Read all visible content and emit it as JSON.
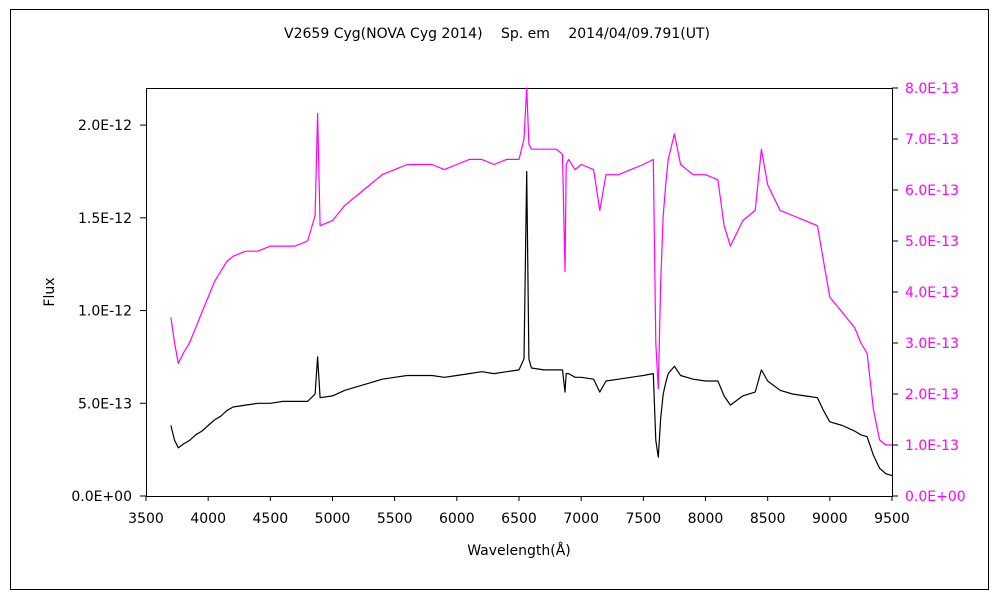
{
  "chart_data": {
    "type": "line",
    "title": "V2659 Cyg(NOVA Cyg 2014)　 Sp. em　 2014/04/09.791(UT)",
    "xlabel": "Wavelength(Å)",
    "ylabel": "Flux",
    "xlim": [
      3500,
      9500
    ],
    "ylim_left": [
      0,
      2.2e-12
    ],
    "ylim_right": [
      0,
      8e-13
    ],
    "x_ticks": [
      "3500",
      "4000",
      "4500",
      "5000",
      "5500",
      "6000",
      "6500",
      "7000",
      "7500",
      "8000",
      "8500",
      "9000",
      "9500"
    ],
    "y_ticks_left": [
      "0.0E+00",
      "5.0E-13",
      "1.0E-12",
      "1.5E-12",
      "2.0E-12"
    ],
    "y_ticks_right": [
      "0.0E+00",
      "1.0E-13",
      "2.0E-13",
      "3.0E-13",
      "4.0E-13",
      "5.0E-13",
      "6.0E-13",
      "7.0E-13",
      "8.0E-13"
    ],
    "grid": false,
    "series": [
      {
        "axis": "left",
        "color": "#000000",
        "x": [
          3700,
          3730,
          3760,
          3800,
          3850,
          3900,
          3950,
          4000,
          4050,
          4100,
          4150,
          4200,
          4300,
          4400,
          4500,
          4600,
          4700,
          4800,
          4860,
          4880,
          4900,
          5000,
          5100,
          5200,
          5300,
          5400,
          5500,
          5600,
          5700,
          5800,
          5900,
          6000,
          6100,
          6200,
          6300,
          6400,
          6500,
          6540,
          6562,
          6580,
          6600,
          6700,
          6800,
          6850,
          6870,
          6880,
          6900,
          6950,
          7000,
          7100,
          7150,
          7200,
          7300,
          7400,
          7500,
          7580,
          7600,
          7620,
          7640,
          7660,
          7680,
          7700,
          7750,
          7800,
          7900,
          8000,
          8100,
          8150,
          8200,
          8300,
          8400,
          8450,
          8500,
          8600,
          8700,
          8800,
          8900,
          8950,
          9000,
          9100,
          9200,
          9250,
          9300,
          9350,
          9400,
          9450,
          9500
        ],
        "y": [
          3.8e-13,
          3e-13,
          2.6e-13,
          2.8e-13,
          3e-13,
          3.3e-13,
          3.5e-13,
          3.8e-13,
          4.1e-13,
          4.3e-13,
          4.6e-13,
          4.8e-13,
          4.9e-13,
          5e-13,
          5e-13,
          5.1e-13,
          5.1e-13,
          5.1e-13,
          5.5e-13,
          7.5e-13,
          5.3e-13,
          5.4e-13,
          5.7e-13,
          5.9e-13,
          6.1e-13,
          6.3e-13,
          6.4e-13,
          6.5e-13,
          6.5e-13,
          6.5e-13,
          6.4e-13,
          6.5e-13,
          6.6e-13,
          6.7e-13,
          6.6e-13,
          6.7e-13,
          6.8e-13,
          7.4e-13,
          1.75e-12,
          7.4e-13,
          6.9e-13,
          6.8e-13,
          6.8e-13,
          6.8e-13,
          5.6e-13,
          6.6e-13,
          6.6e-13,
          6.4e-13,
          6.4e-13,
          6.3e-13,
          5.6e-13,
          6.2e-13,
          6.3e-13,
          6.4e-13,
          6.5e-13,
          6.6e-13,
          3e-13,
          2.1e-13,
          4.2e-13,
          5.5e-13,
          6.1e-13,
          6.6e-13,
          7e-13,
          6.5e-13,
          6.3e-13,
          6.2e-13,
          6.2e-13,
          5.4e-13,
          4.9e-13,
          5.4e-13,
          5.6e-13,
          6.8e-13,
          6.2e-13,
          5.7e-13,
          5.5e-13,
          5.4e-13,
          5.3e-13,
          4.6e-13,
          4e-13,
          3.8e-13,
          3.5e-13,
          3.3e-13,
          3.2e-13,
          2.2e-13,
          1.5e-13,
          1.2e-13,
          1.1e-13
        ]
      },
      {
        "axis": "right",
        "color": "#ff00ff",
        "x": [
          3700,
          3730,
          3760,
          3800,
          3850,
          3900,
          3950,
          4000,
          4050,
          4100,
          4150,
          4200,
          4300,
          4400,
          4500,
          4600,
          4700,
          4800,
          4860,
          4880,
          4900,
          5000,
          5100,
          5200,
          5300,
          5400,
          5500,
          5600,
          5700,
          5800,
          5900,
          6000,
          6100,
          6200,
          6300,
          6400,
          6500,
          6540,
          6562,
          6580,
          6600,
          6700,
          6800,
          6850,
          6870,
          6880,
          6900,
          6950,
          7000,
          7100,
          7150,
          7200,
          7300,
          7400,
          7500,
          7580,
          7600,
          7620,
          7640,
          7660,
          7680,
          7700,
          7750,
          7800,
          7900,
          8000,
          8100,
          8150,
          8200,
          8300,
          8400,
          8450,
          8500,
          8600,
          8700,
          8800,
          8900,
          8950,
          9000,
          9100,
          9200,
          9250,
          9300,
          9350,
          9400,
          9450,
          9500
        ],
        "y": [
          3.5e-13,
          3e-13,
          2.6e-13,
          2.8e-13,
          3e-13,
          3.3e-13,
          3.6e-13,
          3.9e-13,
          4.2e-13,
          4.4e-13,
          4.6e-13,
          4.7e-13,
          4.8e-13,
          4.8e-13,
          4.9e-13,
          4.9e-13,
          4.9e-13,
          5e-13,
          5.5e-13,
          7.5e-13,
          5.3e-13,
          5.4e-13,
          5.7e-13,
          5.9e-13,
          6.1e-13,
          6.3e-13,
          6.4e-13,
          6.5e-13,
          6.5e-13,
          6.5e-13,
          6.4e-13,
          6.5e-13,
          6.6e-13,
          6.6e-13,
          6.5e-13,
          6.6e-13,
          6.6e-13,
          7e-13,
          8e-13,
          6.9e-13,
          6.8e-13,
          6.8e-13,
          6.8e-13,
          6.7e-13,
          4.4e-13,
          6.5e-13,
          6.6e-13,
          6.4e-13,
          6.5e-13,
          6.4e-13,
          5.6e-13,
          6.3e-13,
          6.3e-13,
          6.4e-13,
          6.5e-13,
          6.6e-13,
          3e-13,
          2.1e-13,
          4.2e-13,
          5.5e-13,
          6.1e-13,
          6.6e-13,
          7.1e-13,
          6.5e-13,
          6.3e-13,
          6.3e-13,
          6.2e-13,
          5.3e-13,
          4.9e-13,
          5.4e-13,
          5.6e-13,
          6.8e-13,
          6.1e-13,
          5.6e-13,
          5.5e-13,
          5.4e-13,
          5.3e-13,
          4.6e-13,
          3.9e-13,
          3.6e-13,
          3.3e-13,
          3e-13,
          2.8e-13,
          1.7e-13,
          1.1e-13,
          1e-13,
          1e-13
        ]
      }
    ]
  }
}
